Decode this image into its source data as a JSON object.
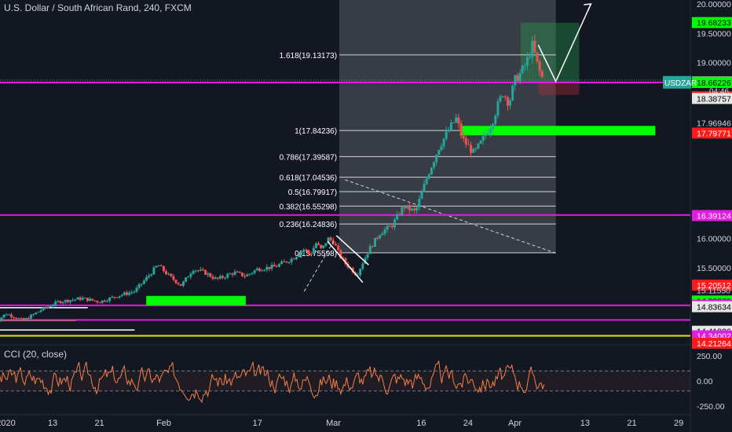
{
  "header": {
    "title": "U.S. Dollar / South African Rand, 240, FXCM"
  },
  "cci": {
    "label": "CCI (20, close)",
    "ticks": [
      {
        "v": 250,
        "label": "250.00"
      },
      {
        "v": 0,
        "label": "0.00"
      },
      {
        "v": -250,
        "label": "-250.00"
      }
    ]
  },
  "colors": {
    "background": "#131722",
    "up": "#26a69a",
    "down": "#ef5350",
    "magenta": "#e31ce3",
    "green": "#00ff00",
    "yellow": "#e6e600",
    "cci": "#f57f4a",
    "axis_text": "#d1d4dc"
  },
  "chart_data": {
    "type": "candlestick",
    "title": "U.S. Dollar / South African Rand, 240, FXCM",
    "symbol": "USDZAR",
    "ylim": [
      14.2,
      20.0
    ],
    "x_ticks": [
      {
        "label": "2020",
        "day": 5
      },
      {
        "label": "13",
        "day": 13
      },
      {
        "label": "21",
        "day": 21
      },
      {
        "label": "Feb",
        "day": 32
      },
      {
        "label": "17",
        "day": 48
      },
      {
        "label": "Mar",
        "day": 61
      },
      {
        "label": "16",
        "day": 76
      },
      {
        "label": "24",
        "day": 84
      },
      {
        "label": "Apr",
        "day": 92
      },
      {
        "label": "13",
        "day": 104
      },
      {
        "label": "21",
        "day": 112
      },
      {
        "label": "29",
        "day": 120
      }
    ],
    "price_anchors": [
      [
        3,
        14.55
      ],
      [
        5,
        14.72
      ],
      [
        8,
        14.6
      ],
      [
        11,
        14.78
      ],
      [
        14,
        14.92
      ],
      [
        18,
        14.98
      ],
      [
        21,
        14.92
      ],
      [
        24,
        15.02
      ],
      [
        27,
        15.1
      ],
      [
        29,
        15.32
      ],
      [
        31,
        15.55
      ],
      [
        33,
        15.35
      ],
      [
        35,
        15.2
      ],
      [
        37,
        15.48
      ],
      [
        39,
        15.42
      ],
      [
        41,
        15.3
      ],
      [
        44,
        15.42
      ],
      [
        46,
        15.36
      ],
      [
        48,
        15.48
      ],
      [
        51,
        15.52
      ],
      [
        54,
        15.66
      ],
      [
        56,
        15.82
      ],
      [
        57,
        15.72
      ],
      [
        58,
        15.92
      ],
      [
        59,
        15.8
      ],
      [
        60,
        16.0
      ],
      [
        61,
        15.95
      ],
      [
        62,
        15.72
      ],
      [
        63,
        15.58
      ],
      [
        65,
        15.38
      ],
      [
        67,
        15.8
      ],
      [
        69,
        16.1
      ],
      [
        71,
        16.22
      ],
      [
        73,
        16.55
      ],
      [
        75,
        16.45
      ],
      [
        77,
        17.05
      ],
      [
        79,
        17.55
      ],
      [
        81,
        17.9
      ],
      [
        82,
        18.05
      ],
      [
        83,
        17.7
      ],
      [
        85,
        17.45
      ],
      [
        86,
        17.6
      ],
      [
        88,
        17.95
      ],
      [
        89,
        18.25
      ],
      [
        90,
        18.5
      ],
      [
        91,
        18.3
      ],
      [
        92,
        18.7
      ],
      [
        93,
        18.82
      ],
      [
        94,
        19.0
      ],
      [
        95,
        19.3
      ],
      [
        96,
        18.9
      ],
      [
        97,
        18.66
      ]
    ],
    "current_price": {
      "label": "USDZAR",
      "value": "18.66340",
      "countdown": "04:46"
    },
    "price_axis_labels": [
      {
        "v": 20.0,
        "label": "20.00000",
        "style": "plain"
      },
      {
        "v": 19.68233,
        "label": "19.68233",
        "style": "green"
      },
      {
        "v": 19.5,
        "label": "19.50000",
        "style": "plain"
      },
      {
        "v": 19.0,
        "label": "19.00000",
        "style": "plain"
      },
      {
        "v": 18.66911,
        "label": "18.66911",
        "style": "white"
      },
      {
        "v": 18.6634,
        "label": "18.66340",
        "style": "white"
      },
      {
        "v": 18.66226,
        "label": "18.66226",
        "style": "green"
      },
      {
        "v": 18.41795,
        "label": "18.41795",
        "style": "red"
      },
      {
        "v": 18.38757,
        "label": "18.38757",
        "style": "white"
      },
      {
        "v": 17.96946,
        "label": "17.96946",
        "style": "plain"
      },
      {
        "v": 17.79771,
        "label": "17.79771",
        "style": "red"
      },
      {
        "v": 16.39124,
        "label": "16.39124",
        "style": "magenta"
      },
      {
        "v": 16.0,
        "label": "16.00000",
        "style": "plain"
      },
      {
        "v": 15.5,
        "label": "15.50000",
        "style": "plain"
      },
      {
        "v": 15.20512,
        "label": "15.20512",
        "style": "red"
      },
      {
        "v": 15.1155,
        "label": "15.11550",
        "style": "plain"
      },
      {
        "v": 14.9337,
        "label": "14.93370",
        "style": "green"
      },
      {
        "v": 14.86133,
        "label": "14.86133",
        "style": "magenta"
      },
      {
        "v": 14.83634,
        "label": "14.83634",
        "style": "white"
      },
      {
        "v": 14.41826,
        "label": "14.41826",
        "style": "white"
      },
      {
        "v": 14.34002,
        "label": "14.34002",
        "style": "magenta"
      },
      {
        "v": 14.21264,
        "label": "14.21264",
        "style": "red"
      }
    ],
    "horizontal_levels": [
      {
        "v": 18.66,
        "color": "magenta"
      },
      {
        "v": 16.4,
        "color": "magenta"
      },
      {
        "v": 14.86,
        "color": "magenta"
      },
      {
        "v": 14.61,
        "color": "magenta"
      },
      {
        "v": 14.34,
        "color": "yellow"
      }
    ],
    "fibonacci": {
      "day_start": 62,
      "day_end": 99,
      "levels": [
        {
          "label": "1.618(19.13173)",
          "v": 19.13173
        },
        {
          "label": "1(17.84236)",
          "v": 17.84236
        },
        {
          "label": "0.786(17.39587)",
          "v": 17.39587
        },
        {
          "label": "0.618(17.04536)",
          "v": 17.04536
        },
        {
          "label": "0.5(16.79917)",
          "v": 16.79917
        },
        {
          "label": "0.382(16.55298)",
          "v": 16.55298
        },
        {
          "label": "0.236(16.24836)",
          "v": 16.24836
        },
        {
          "label": "0(15.75598)",
          "v": 15.75598
        }
      ]
    },
    "zones": [
      {
        "day_start": 29,
        "day_end": 46,
        "v": 14.94,
        "color": "green"
      },
      {
        "day_start": 83,
        "day_end": 116,
        "v": 17.84,
        "color": "green"
      }
    ],
    "projection": [
      {
        "day": 96,
        "v": 19.3
      },
      {
        "day": 99,
        "v": 18.68
      },
      {
        "day": 105,
        "v": 20.0
      }
    ]
  }
}
